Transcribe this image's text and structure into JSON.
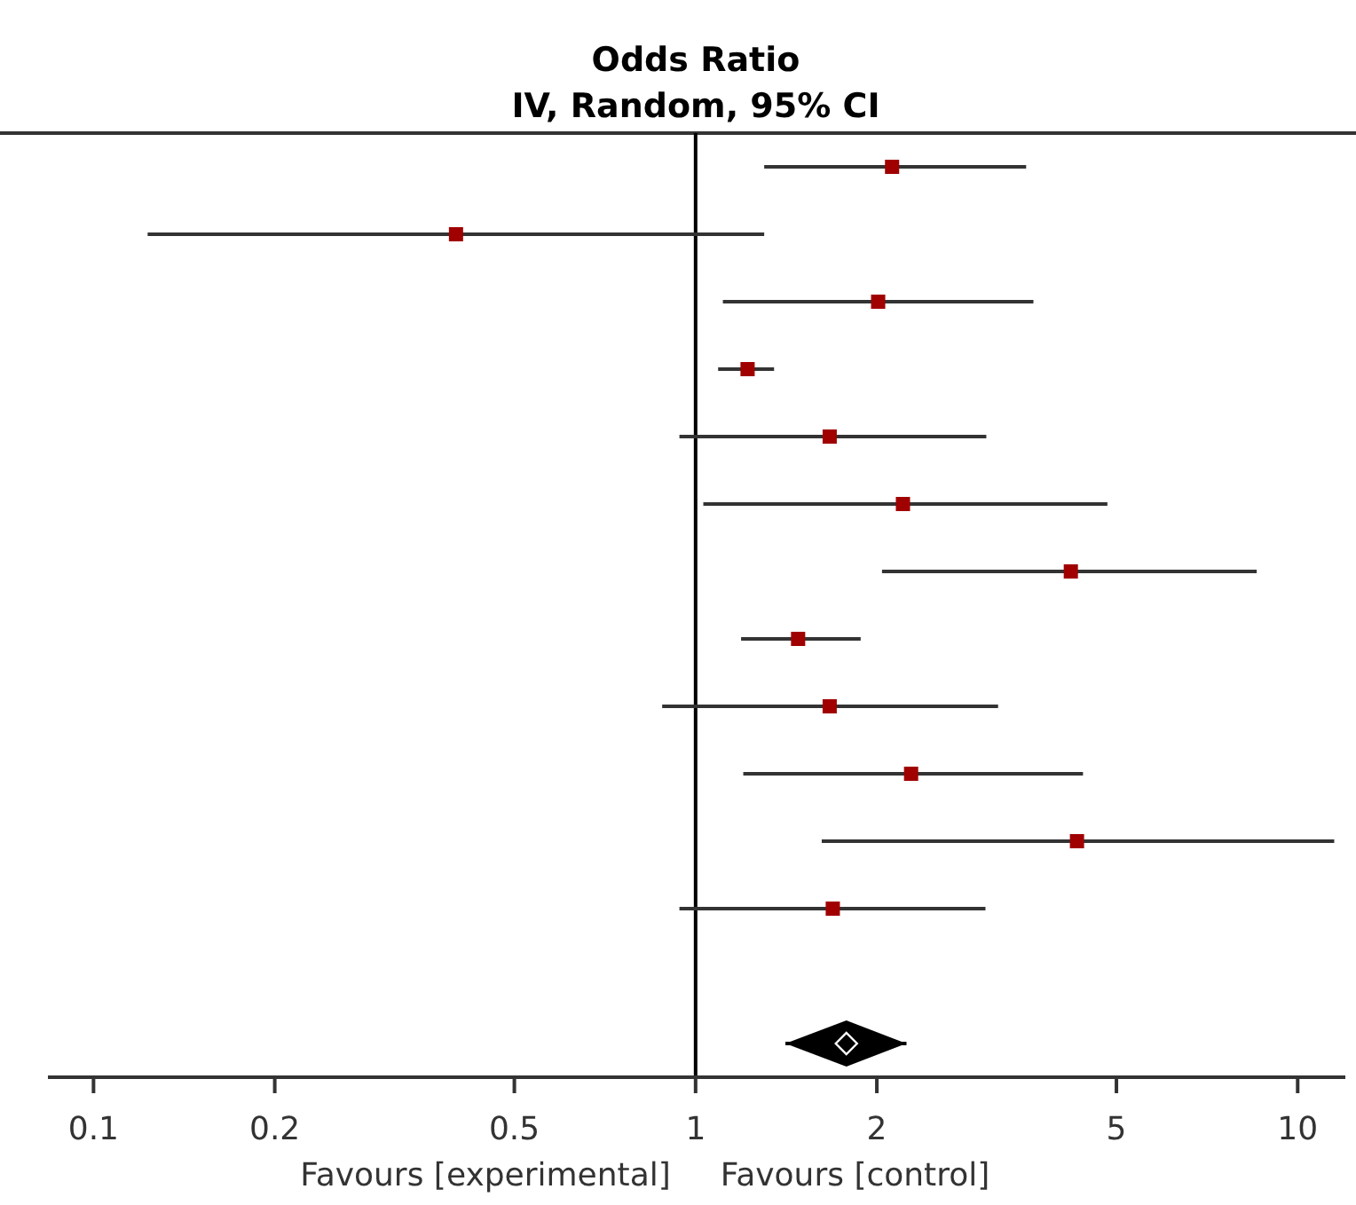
{
  "chart_data": {
    "type": "scatter",
    "title": "Odds Ratio",
    "subtitle": "IV, Random, 95% CI",
    "orientation": "horizontal",
    "log": "x",
    "xlim": [
      0.084,
      12
    ],
    "xticks": [
      0.1,
      0.2,
      0.5,
      1,
      2,
      5,
      10
    ],
    "tick_labels": "x",
    "grid": false,
    "legend": false,
    "categories": [
      null,
      null,
      null,
      null,
      null,
      null,
      null,
      null,
      null,
      null,
      null,
      null,
      null,
      null
    ],
    "series": [
      {
        "color": "#a00000",
        "marker": "square",
        "values": [
          2.12,
          0.4,
          2.01,
          1.22,
          1.67,
          2.21,
          4.2,
          1.48,
          1.67,
          2.28,
          4.3,
          1.69,
          null,
          null
        ],
        "errors": [
          [
            1.3,
            3.54
          ],
          [
            0.123,
            1.3
          ],
          [
            1.11,
            3.64
          ],
          [
            1.09,
            1.35
          ],
          [
            0.94,
            3.04
          ],
          [
            1.03,
            4.83
          ],
          [
            2.04,
            8.55
          ],
          [
            1.19,
            1.88
          ],
          [
            0.88,
            3.18
          ],
          [
            1.2,
            4.4
          ],
          [
            1.62,
            11.5
          ],
          [
            0.94,
            3.03
          ],
          null,
          null
        ]
      },
      {
        "color": "#000000",
        "marker": "diamond",
        "values": [
          null,
          null,
          null,
          null,
          null,
          null,
          null,
          null,
          null,
          null,
          null,
          null,
          null,
          1.78
        ],
        "errors": [
          null,
          null,
          null,
          null,
          null,
          null,
          null,
          null,
          null,
          null,
          null,
          null,
          null,
          [
            1.41,
            2.24
          ]
        ]
      }
    ],
    "ref_lines": [
      {
        "axis": "x",
        "value": 1,
        "color": "#000000"
      }
    ],
    "annotations": [
      "Favours [experimental]",
      "Favours [control]"
    ]
  }
}
